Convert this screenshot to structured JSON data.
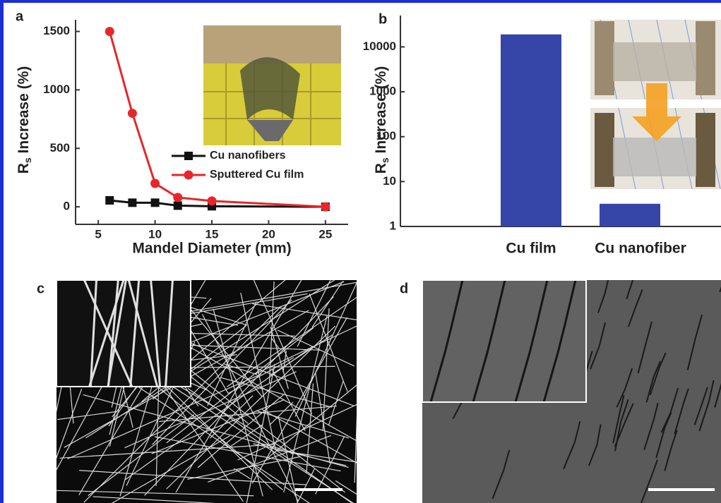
{
  "chart_data": [
    {
      "type": "line",
      "panel": "a",
      "x_label": "Mandel Diameter (mm)",
      "y_label": [
        "R",
        "s",
        " Increase (%)"
      ],
      "x": [
        6,
        8,
        10,
        12,
        15,
        25
      ],
      "series": [
        {
          "name": "Cu nanofibers",
          "color": "#111111",
          "marker": "square",
          "values": [
            55,
            35,
            35,
            10,
            5,
            0
          ]
        },
        {
          "name": "Sputtered Cu film",
          "color": "#e8262a",
          "marker": "circle",
          "values": [
            1500,
            800,
            200,
            80,
            50,
            0
          ]
        }
      ],
      "xlim": [
        3,
        27
      ],
      "xticks": [
        5,
        10,
        15,
        20,
        25
      ],
      "ylim": [
        -150,
        1600
      ],
      "yticks": [
        0,
        500,
        1000,
        1500
      ]
    },
    {
      "type": "bar",
      "panel": "b",
      "y_label": [
        "R",
        "s",
        " Increase (%)"
      ],
      "categories": [
        "Cu film",
        "Cu nanofiber"
      ],
      "values": [
        19000,
        3.2
      ],
      "color": "#3545a8",
      "log_scale": true,
      "ylim": [
        1,
        50000
      ],
      "yticks": [
        1,
        10,
        100,
        1000,
        10000
      ]
    }
  ],
  "panels": {
    "c": "c",
    "d": "d"
  }
}
